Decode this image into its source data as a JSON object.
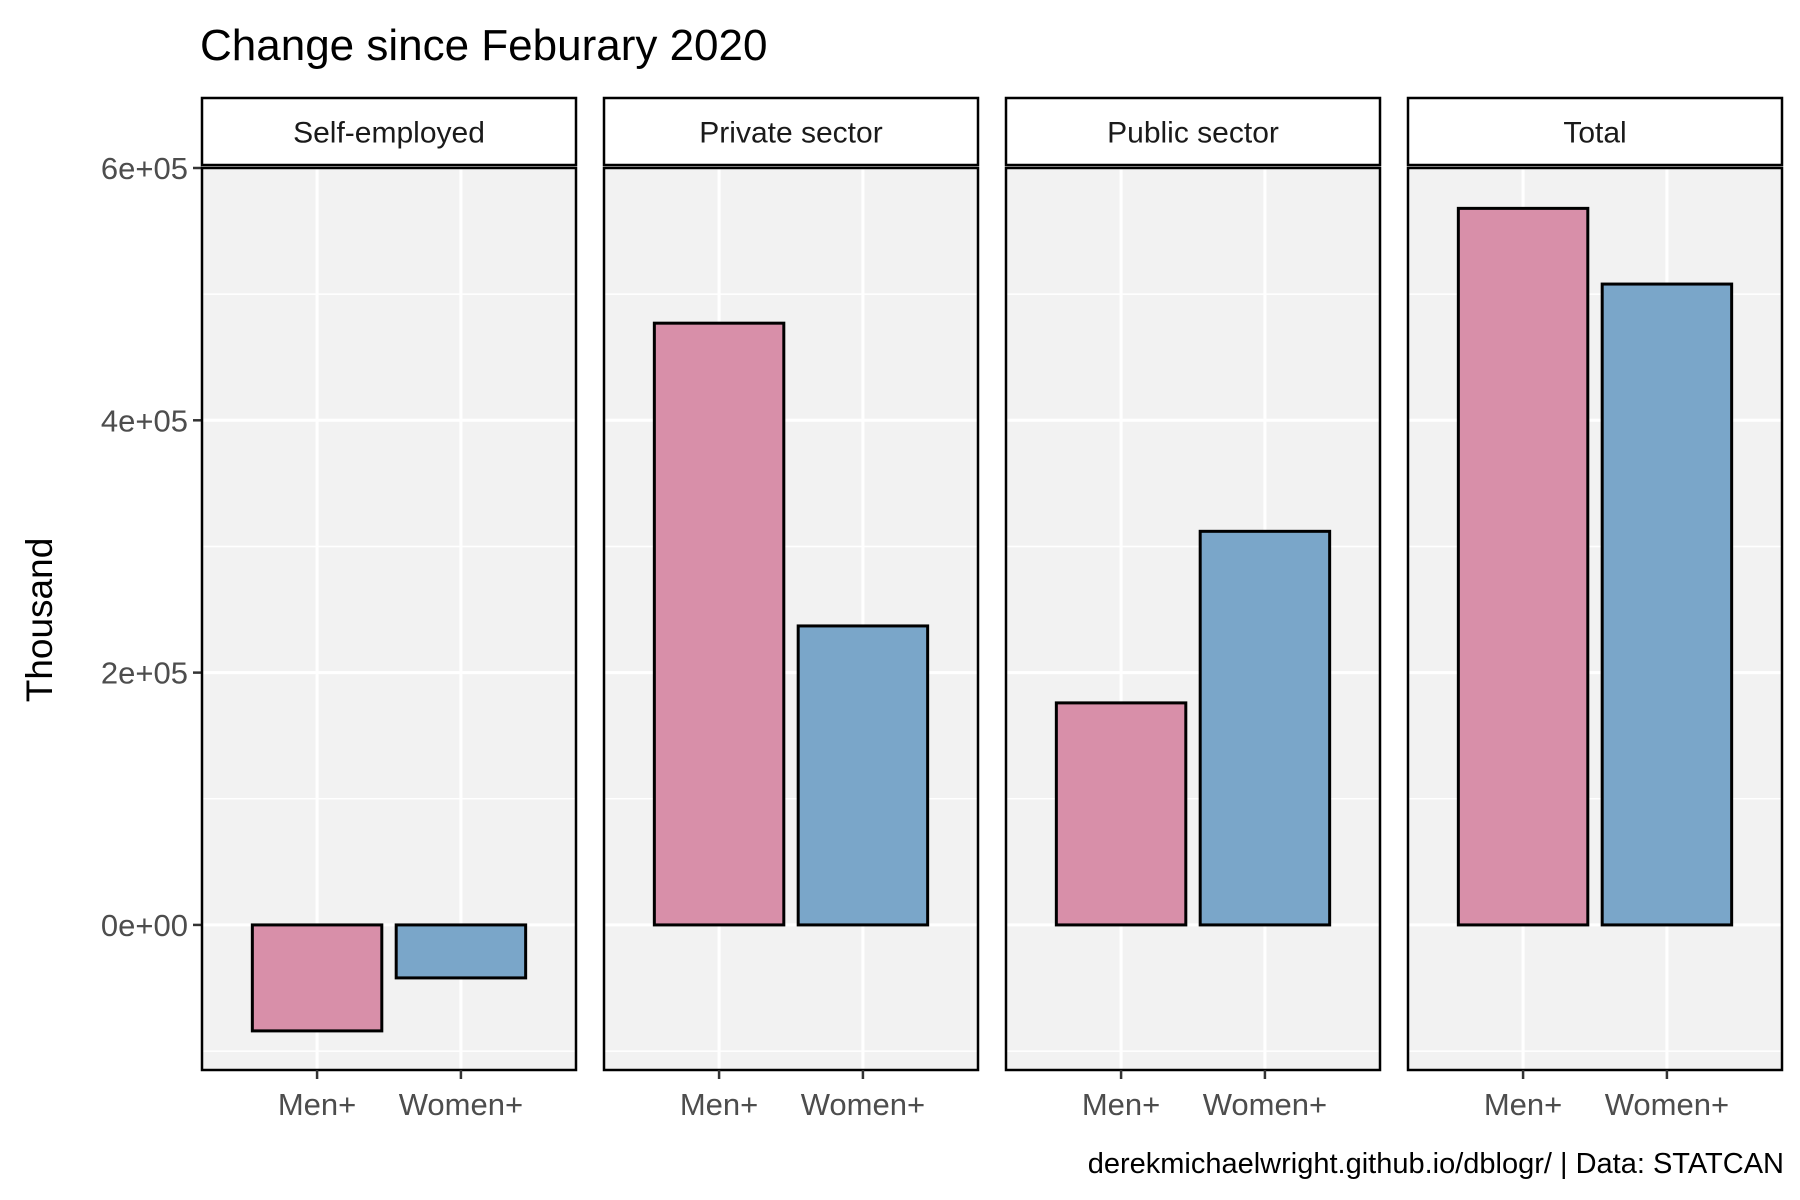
{
  "chart_data": {
    "type": "bar",
    "title": "Change since Feburary 2020",
    "ylabel": "Thousand",
    "xlabel": "",
    "caption": "derekmichaelwright.github.io/dblogr/ | Data: STATCAN",
    "categories": [
      "Men+",
      "Women+"
    ],
    "ylim": [
      -115000,
      600000
    ],
    "yticks": [
      0,
      200000,
      400000,
      600000
    ],
    "ytick_labels": [
      "0e+00",
      "2e+05",
      "4e+05",
      "6e+05"
    ],
    "grid": true,
    "legend": "none",
    "colors": {
      "Men+": "#d88fa9",
      "Women+": "#7aa6c9"
    },
    "panel_background": "#f2f2f2",
    "facets": [
      {
        "name": "Self-employed",
        "values": [
          -84000,
          -42000
        ]
      },
      {
        "name": "Private sector",
        "values": [
          477000,
          237000
        ]
      },
      {
        "name": "Public sector",
        "values": [
          176000,
          312000
        ]
      },
      {
        "name": "Total",
        "values": [
          568000,
          508000
        ]
      }
    ]
  }
}
